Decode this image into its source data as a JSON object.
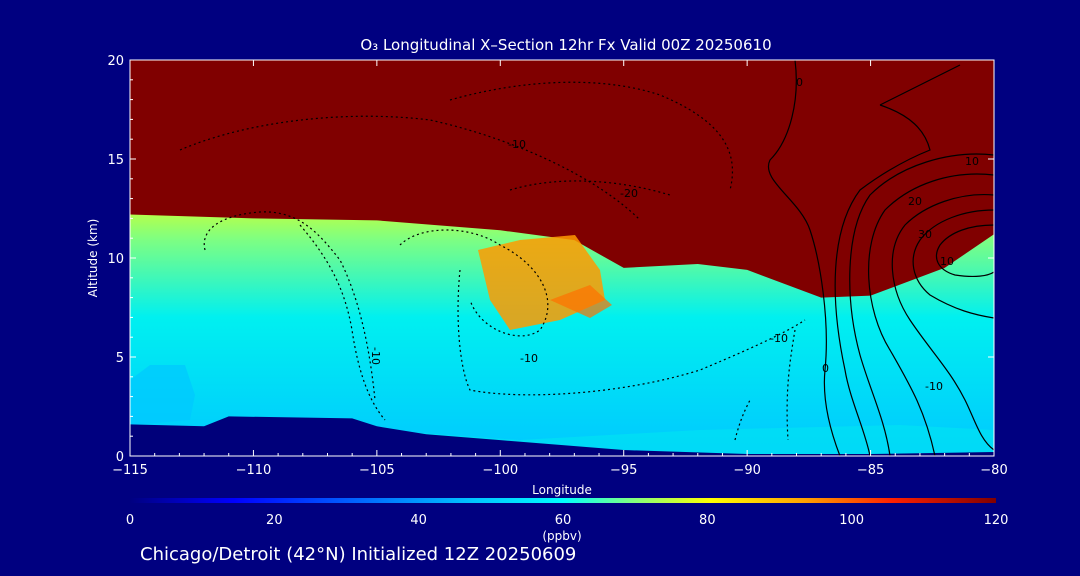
{
  "chart_data": {
    "type": "heatmap",
    "title": "O₃ Longitudinal X–Section 12hr  Fx Valid 00Z 20250610",
    "xlabel": "Longitude",
    "ylabel": "Altitude (km)",
    "xlim": [
      -115,
      -80
    ],
    "ylim": [
      0,
      20
    ],
    "xticks": [
      -115,
      -110,
      -105,
      -100,
      -95,
      -90,
      -85,
      -80
    ],
    "yticks": [
      0,
      5,
      10,
      15,
      20
    ],
    "colorbar": {
      "label": "(ppbv)",
      "range": [
        0,
        120
      ],
      "ticks": [
        0,
        20,
        40,
        60,
        80,
        100,
        120
      ]
    },
    "colors": {
      "background": "#000080",
      "terrain": "#00007a",
      "ozone_high": "#800000",
      "ozone_low": "#00c8ff"
    },
    "o3_tropopause_height_km": {
      "longitude": [
        -115,
        -110,
        -105,
        -100,
        -97,
        -95,
        -92,
        -90,
        -87,
        -85,
        -82,
        -80
      ],
      "altitude": [
        12.2,
        12.0,
        11.9,
        11.4,
        10.9,
        9.5,
        9.7,
        9.4,
        8.0,
        8.1,
        9.5,
        11.2
      ]
    },
    "terrain_height_km": {
      "longitude": [
        -115,
        -112,
        -111,
        -106,
        -105,
        -103,
        -100,
        -95,
        -90,
        -85,
        -80
      ],
      "altitude": [
        1.6,
        1.5,
        2.0,
        1.9,
        1.5,
        1.1,
        0.8,
        0.3,
        0.1,
        0.1,
        0.2
      ]
    },
    "contour_labels": [
      "0",
      "-10",
      "-20",
      "-10",
      "-10",
      "-10",
      "0",
      "-10",
      "10",
      "20",
      "30",
      "10"
    ]
  },
  "footer": "Chicago/Detroit (42°N) Initialized 12Z 20250609"
}
